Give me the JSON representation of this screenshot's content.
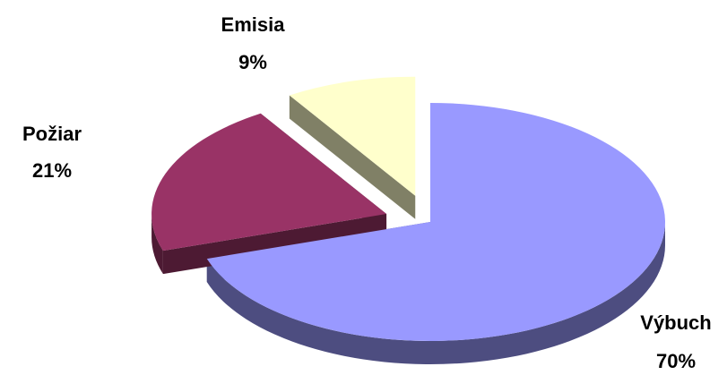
{
  "chart_data": {
    "type": "pie",
    "style": "3d-exploded",
    "categories": [
      "Výbuch",
      "Požiar",
      "Emisia"
    ],
    "values": [
      70,
      21,
      9
    ],
    "series": [
      {
        "values": [
          70,
          21,
          9
        ],
        "slices": [
          {
            "name": "Výbuch",
            "value": 70,
            "label": "Výbuch",
            "value_label": "70%",
            "color": "#9999FF",
            "side_color": "#4D4D80"
          },
          {
            "name": "Požiar",
            "value": 21,
            "label": "Požiar",
            "value_label": "21%",
            "color": "#993366",
            "side_color": "#4D1A33"
          },
          {
            "name": "Emisia",
            "value": 9,
            "label": "Emisia",
            "value_label": "9%",
            "color": "#FFFFCC",
            "side_color": "#808066"
          }
        ]
      }
    ],
    "title": "",
    "legend": "none",
    "data_labels": true
  }
}
